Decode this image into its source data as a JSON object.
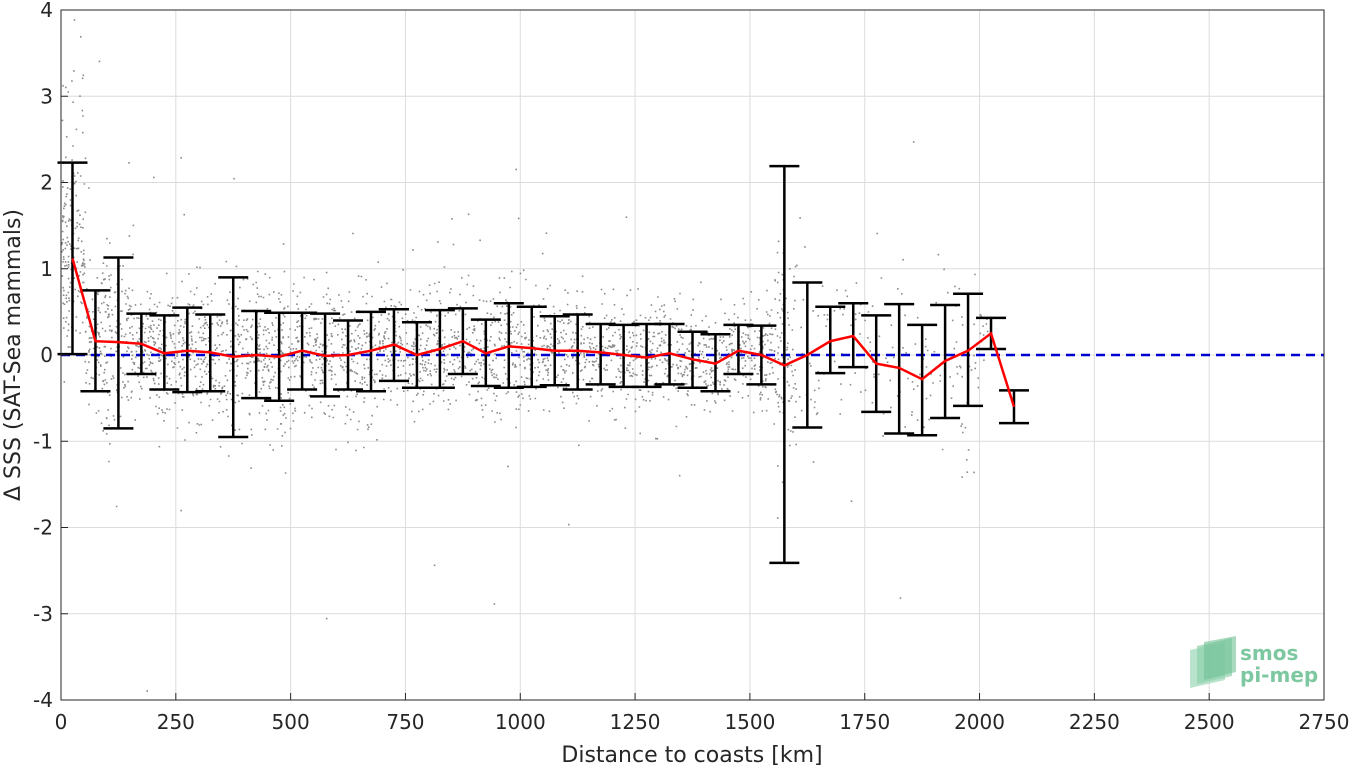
{
  "chart_data": {
    "type": "scatter",
    "xlabel": "Distance to coasts [km]",
    "ylabel": "Δ SSS (SAT-Sea mammals)",
    "xlim": [
      0,
      2750
    ],
    "ylim": [
      -4,
      4
    ],
    "x_ticks": [
      0,
      250,
      500,
      750,
      1000,
      1250,
      1500,
      1750,
      2000,
      2250,
      2500,
      2750
    ],
    "y_ticks": [
      -4,
      -3,
      -2,
      -1,
      0,
      1,
      2,
      3,
      4
    ],
    "grid": true,
    "reference_line": {
      "y": 0,
      "color": "#0000d0",
      "style": "dashed"
    },
    "series": [
      {
        "kind": "binned_mean",
        "color": "#ff0000",
        "x": [
          25,
          75,
          125,
          175,
          225,
          275,
          325,
          375,
          425,
          475,
          525,
          575,
          625,
          675,
          725,
          775,
          825,
          875,
          925,
          975,
          1025,
          1075,
          1125,
          1175,
          1225,
          1275,
          1325,
          1375,
          1425,
          1475,
          1525,
          1575,
          1625,
          1675,
          1725,
          1775,
          1825,
          1875,
          1925,
          1975,
          2025,
          2075
        ],
        "mean": [
          1.12,
          0.16,
          0.15,
          0.13,
          0.02,
          0.05,
          0.03,
          -0.02,
          0.0,
          -0.02,
          0.05,
          -0.01,
          0.0,
          0.05,
          0.12,
          0.0,
          0.07,
          0.16,
          0.02,
          0.1,
          0.08,
          0.05,
          0.05,
          0.03,
          0.0,
          -0.03,
          0.02,
          -0.05,
          -0.1,
          0.05,
          0.0,
          -0.12,
          0.0,
          0.16,
          0.22,
          -0.1,
          -0.15,
          -0.28,
          -0.07,
          0.05,
          0.25,
          -0.6
        ],
        "err_lo": [
          0.01,
          -0.42,
          -0.85,
          -0.22,
          -0.4,
          -0.43,
          -0.42,
          -0.95,
          -0.5,
          -0.53,
          -0.4,
          -0.48,
          -0.4,
          -0.42,
          -0.3,
          -0.38,
          -0.38,
          -0.22,
          -0.36,
          -0.38,
          -0.37,
          -0.35,
          -0.4,
          -0.34,
          -0.37,
          -0.37,
          -0.34,
          -0.38,
          -0.42,
          -0.22,
          -0.34,
          -2.41,
          -0.84,
          -0.21,
          -0.14,
          -0.66,
          -0.91,
          -0.93,
          -0.73,
          -0.59,
          0.07,
          -0.79
        ],
        "err_hi": [
          2.23,
          0.75,
          1.13,
          0.48,
          0.46,
          0.55,
          0.47,
          0.9,
          0.51,
          0.49,
          0.49,
          0.48,
          0.4,
          0.5,
          0.53,
          0.38,
          0.52,
          0.54,
          0.41,
          0.6,
          0.56,
          0.45,
          0.47,
          0.36,
          0.35,
          0.36,
          0.36,
          0.27,
          0.24,
          0.35,
          0.34,
          2.19,
          0.84,
          0.56,
          0.6,
          0.46,
          0.59,
          0.35,
          0.58,
          0.71,
          0.43,
          -0.41
        ]
      }
    ],
    "scatter_points": {
      "color": "#8c8c8c",
      "description_only": false
    }
  },
  "logo": {
    "line1": "smos",
    "line2": "pi-mep"
  }
}
